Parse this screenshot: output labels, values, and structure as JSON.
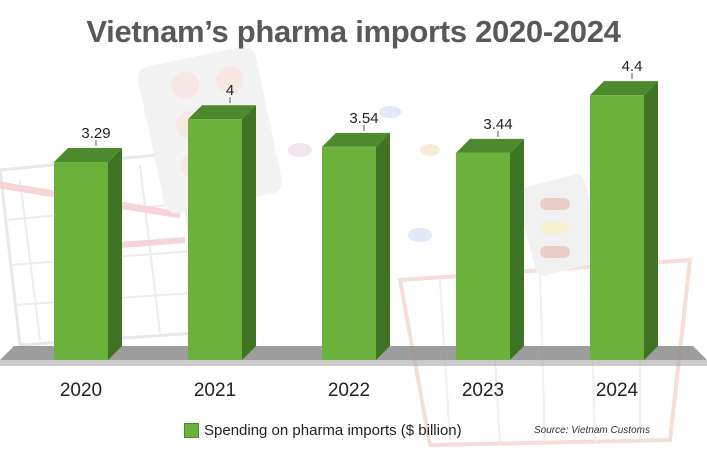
{
  "chart_data": {
    "type": "bar",
    "title": "Vietnam’s pharma imports 2020-2024",
    "categories": [
      "2020",
      "2021",
      "2022",
      "2023",
      "2024"
    ],
    "series": [
      {
        "name": "Spending on pharma imports ($ billion)",
        "values": [
          3.29,
          4,
          3.54,
          3.44,
          4.4
        ]
      }
    ],
    "value_labels": [
      "3.29",
      "4",
      "3.54",
      "3.44",
      "4.4"
    ],
    "xlabel": "",
    "ylabel": "",
    "ylim": [
      0,
      4.8
    ],
    "grid": false,
    "legend_position": "bottom",
    "source": "Source: Vietnam Customs",
    "colors": {
      "bar_front": "#6ab23c",
      "bar_side": "#3f7424",
      "bar_top": "#4d8a2d",
      "floor": "#8c8c8c"
    }
  }
}
